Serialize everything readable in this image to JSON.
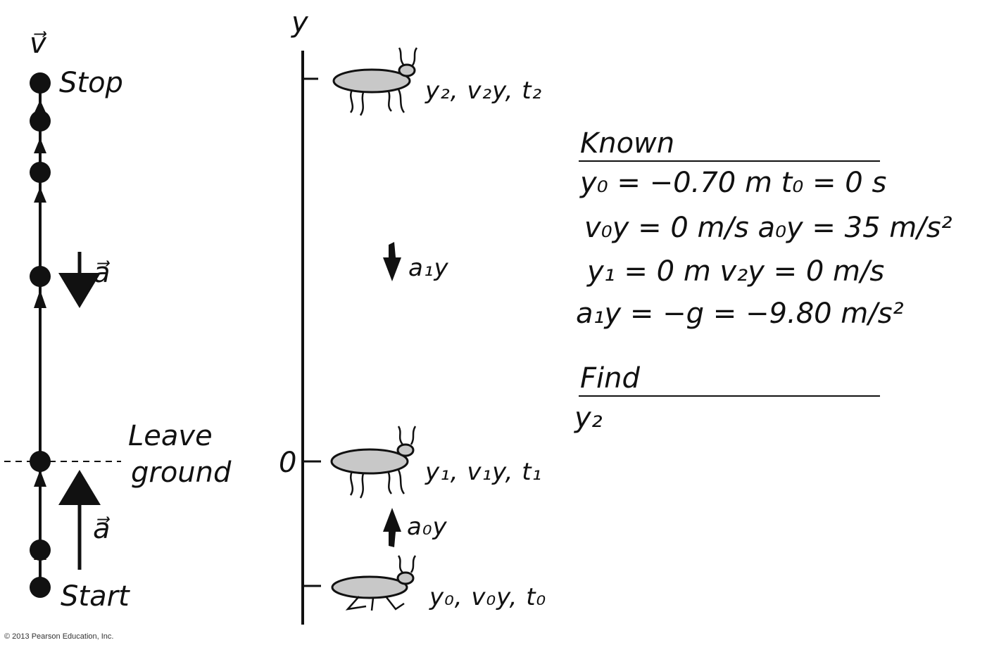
{
  "motion_diagram": {
    "velocity_label": "v⃗",
    "acceleration_label_top": "a⃗",
    "acceleration_label_bottom": "a⃗",
    "stop_label": "Stop",
    "leave_label_line1": "Leave",
    "leave_label_line2": "ground",
    "start_label": "Start"
  },
  "axis": {
    "label": "y",
    "zero_label": "0"
  },
  "positions": {
    "top": "y₂, v₂y, t₂",
    "middle": "y₁, v₁y, t₁",
    "bottom": "y₀, v₀y, t₀"
  },
  "accel_labels": {
    "upper": "a₁y",
    "lower": "a₀y"
  },
  "known": {
    "heading": "Known",
    "lines": [
      "y₀ = −0.70 m   t₀ = 0 s",
      "v₀y = 0 m/s   a₀y = 35 m/s²",
      "y₁ = 0 m   v₂y = 0 m/s",
      "a₁y = −g = −9.80 m/s²"
    ]
  },
  "find": {
    "heading": "Find",
    "lines": [
      "y₂"
    ]
  },
  "copyright": "© 2013 Pearson Education, Inc."
}
